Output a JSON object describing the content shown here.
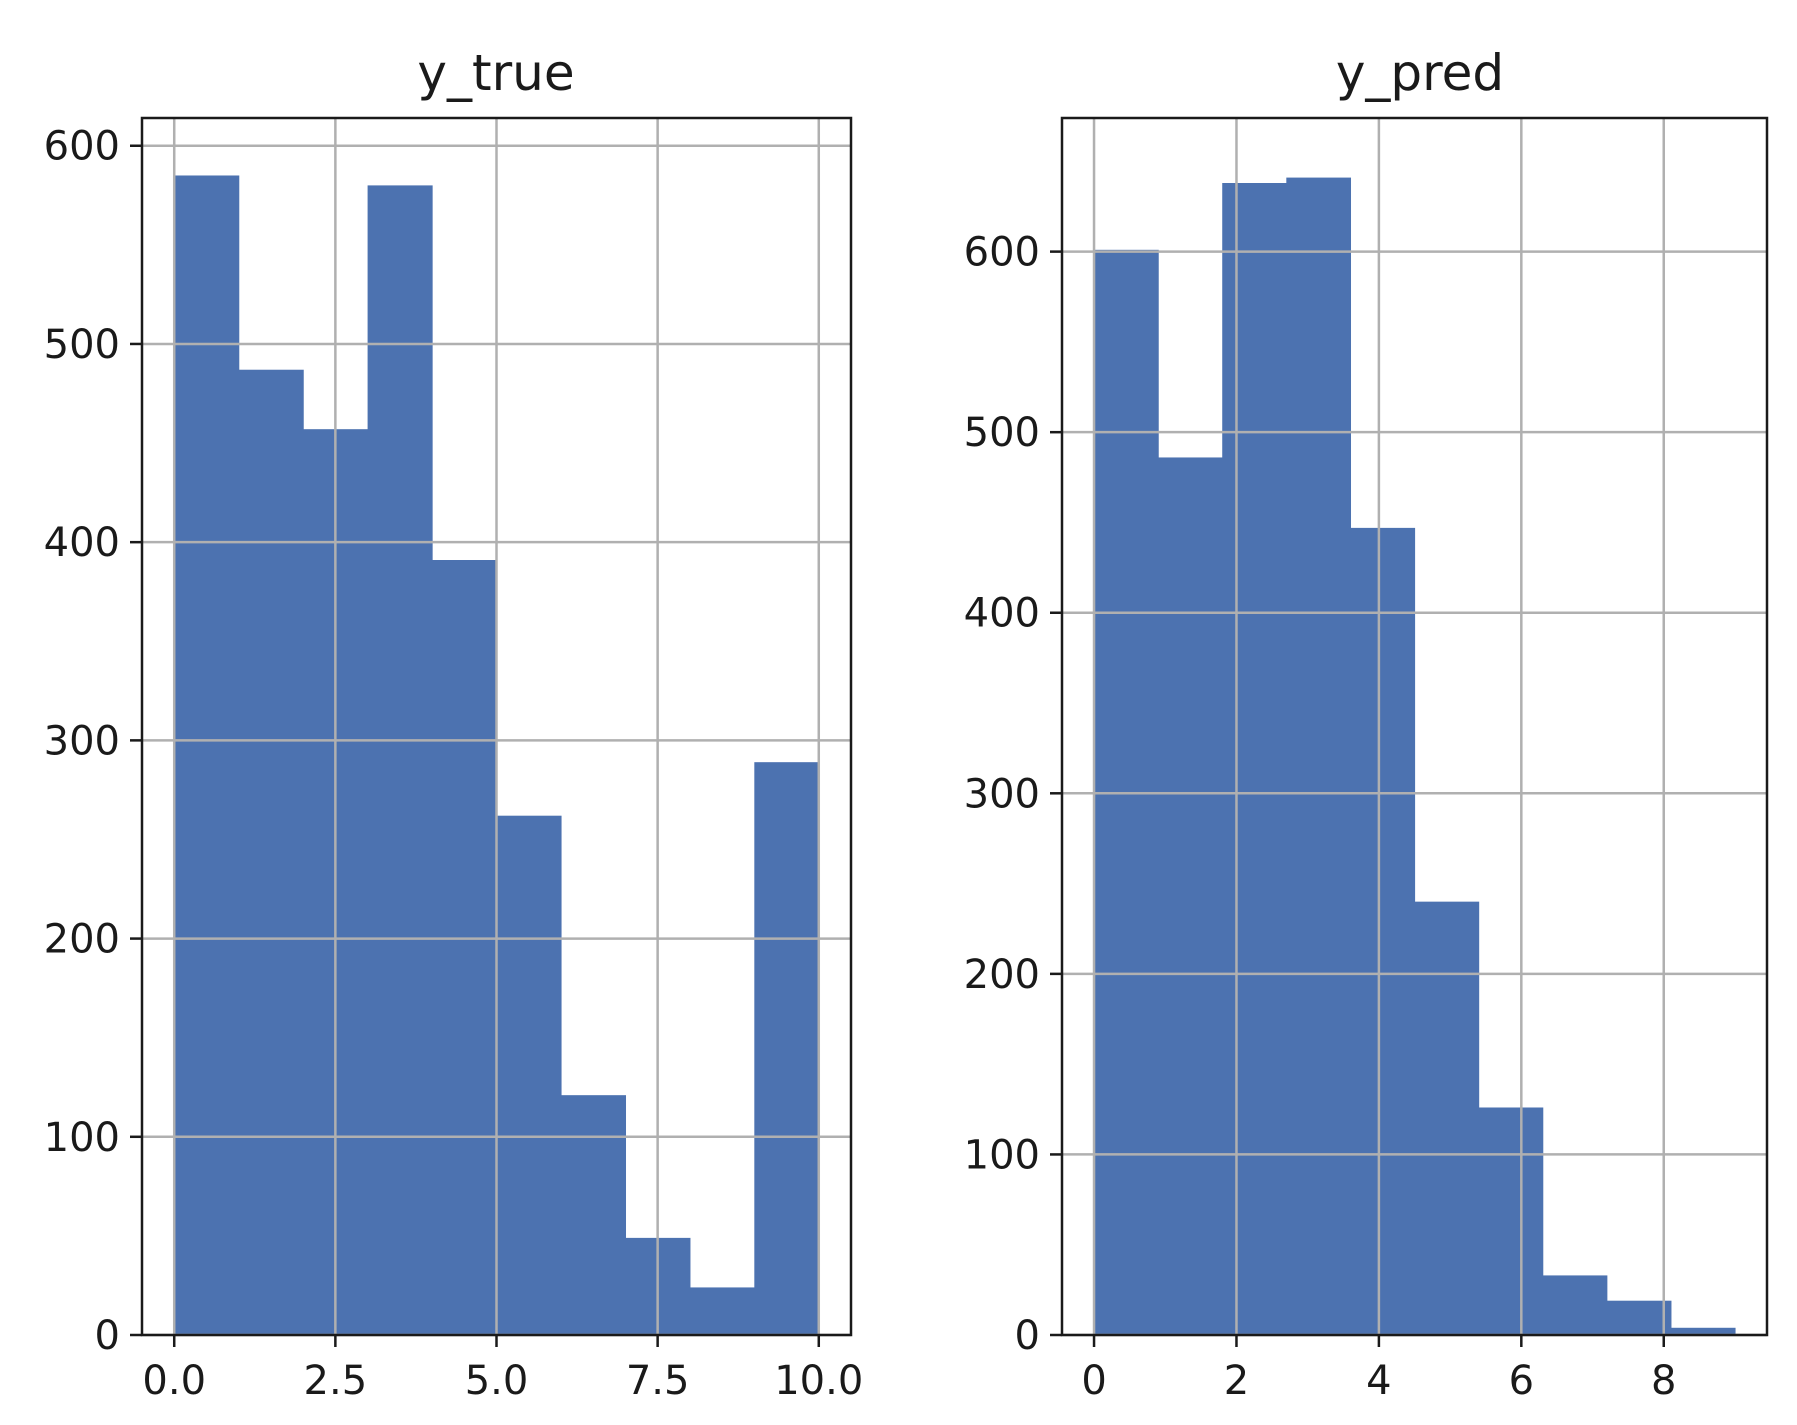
{
  "chart_data": [
    {
      "type": "bar",
      "title": "y_true",
      "bin_edges": [
        0,
        1,
        2,
        3,
        4,
        5,
        6,
        7,
        8,
        9,
        10
      ],
      "values": [
        585,
        487,
        457,
        580,
        391,
        262,
        121,
        49,
        24,
        289
      ],
      "xlim": [
        -0.5,
        10.5
      ],
      "ylim": [
        0,
        614
      ],
      "xticks": [
        0,
        2.5,
        5,
        7.5,
        10
      ],
      "xtick_labels": [
        "0.0",
        "2.5",
        "5.0",
        "7.5",
        "10.0"
      ],
      "yticks": [
        0,
        100,
        200,
        300,
        400,
        500,
        600
      ],
      "ytick_labels": [
        "0",
        "100",
        "200",
        "300",
        "400",
        "500",
        "600"
      ],
      "grid": true,
      "color": "#4c72b0"
    },
    {
      "type": "bar",
      "title": "y_pred",
      "bin_edges": [
        0,
        0.9,
        1.8,
        2.7,
        3.6,
        4.5,
        5.4,
        6.3,
        7.2,
        8.1,
        9.0
      ],
      "values": [
        601,
        486,
        638,
        641,
        447,
        240,
        126,
        33,
        19,
        4
      ],
      "xlim": [
        -0.45,
        9.45
      ],
      "ylim": [
        0,
        674
      ],
      "xticks": [
        0,
        2,
        4,
        6,
        8
      ],
      "xtick_labels": [
        "0",
        "2",
        "4",
        "6",
        "8"
      ],
      "yticks": [
        0,
        100,
        200,
        300,
        400,
        500,
        600
      ],
      "ytick_labels": [
        "0",
        "100",
        "200",
        "300",
        "400",
        "500",
        "600"
      ],
      "grid": true,
      "color": "#4c72b0"
    }
  ]
}
